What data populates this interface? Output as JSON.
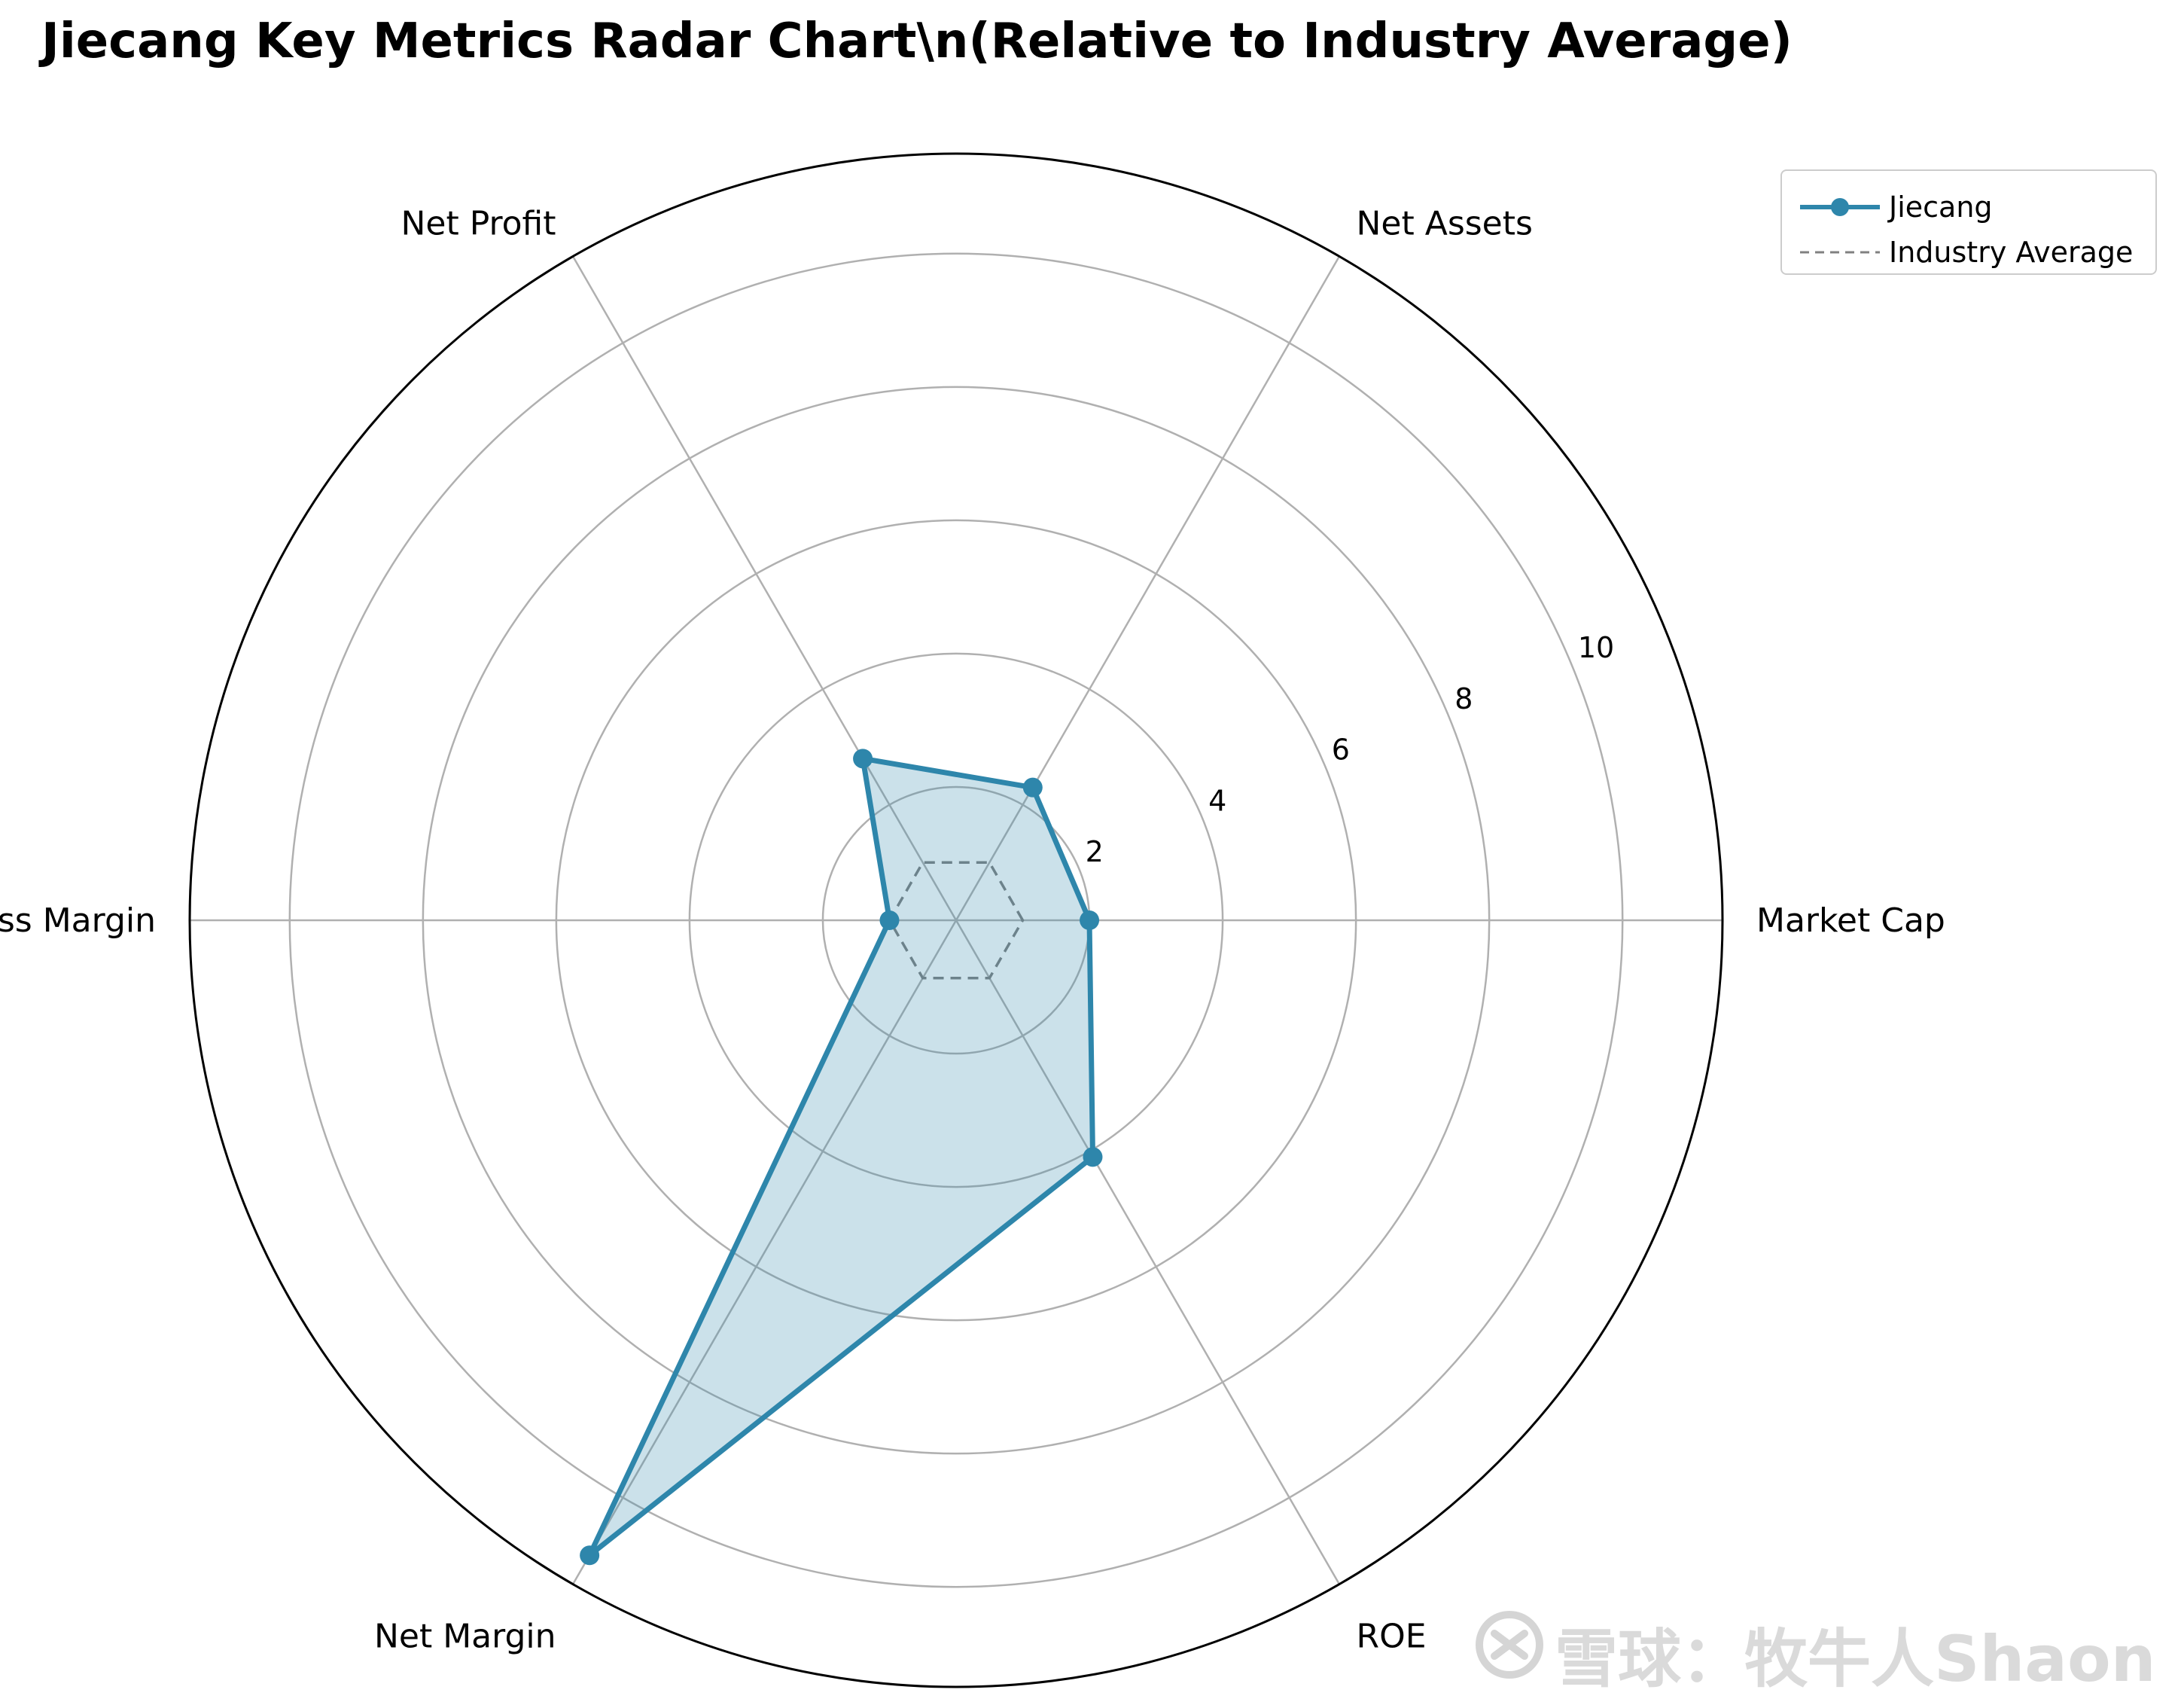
{
  "title": "Jiecang Key Metrics Radar Chart\\n(Relative to Industry Average)",
  "watermark": "雪球：牧牛人Shaon",
  "colors": {
    "series": "#2e86ab",
    "fill": "#2e86ab",
    "average": "#808080",
    "grid": "#b0b0b0",
    "frame": "#000000"
  },
  "chart_data": {
    "type": "radar",
    "categories": [
      "Market Cap",
      "Net Assets",
      "Net Profit",
      "Gross Margin",
      "Net Margin",
      "ROE"
    ],
    "series": [
      {
        "name": "Jiecang",
        "values": [
          2.0,
          2.3,
          2.8,
          1.0,
          11.0,
          4.1
        ],
        "style": "solid line with markers, filled"
      },
      {
        "name": "Industry Average",
        "values": [
          1,
          1,
          1,
          1,
          1,
          1
        ],
        "style": "dashed"
      }
    ],
    "rlim": [
      0,
      11.5
    ],
    "rticks": [
      2,
      4,
      6,
      8,
      10
    ],
    "rtick_labels": [
      "2",
      "4",
      "6",
      "8",
      "10"
    ],
    "grid": true,
    "legend_position": "top-right"
  }
}
